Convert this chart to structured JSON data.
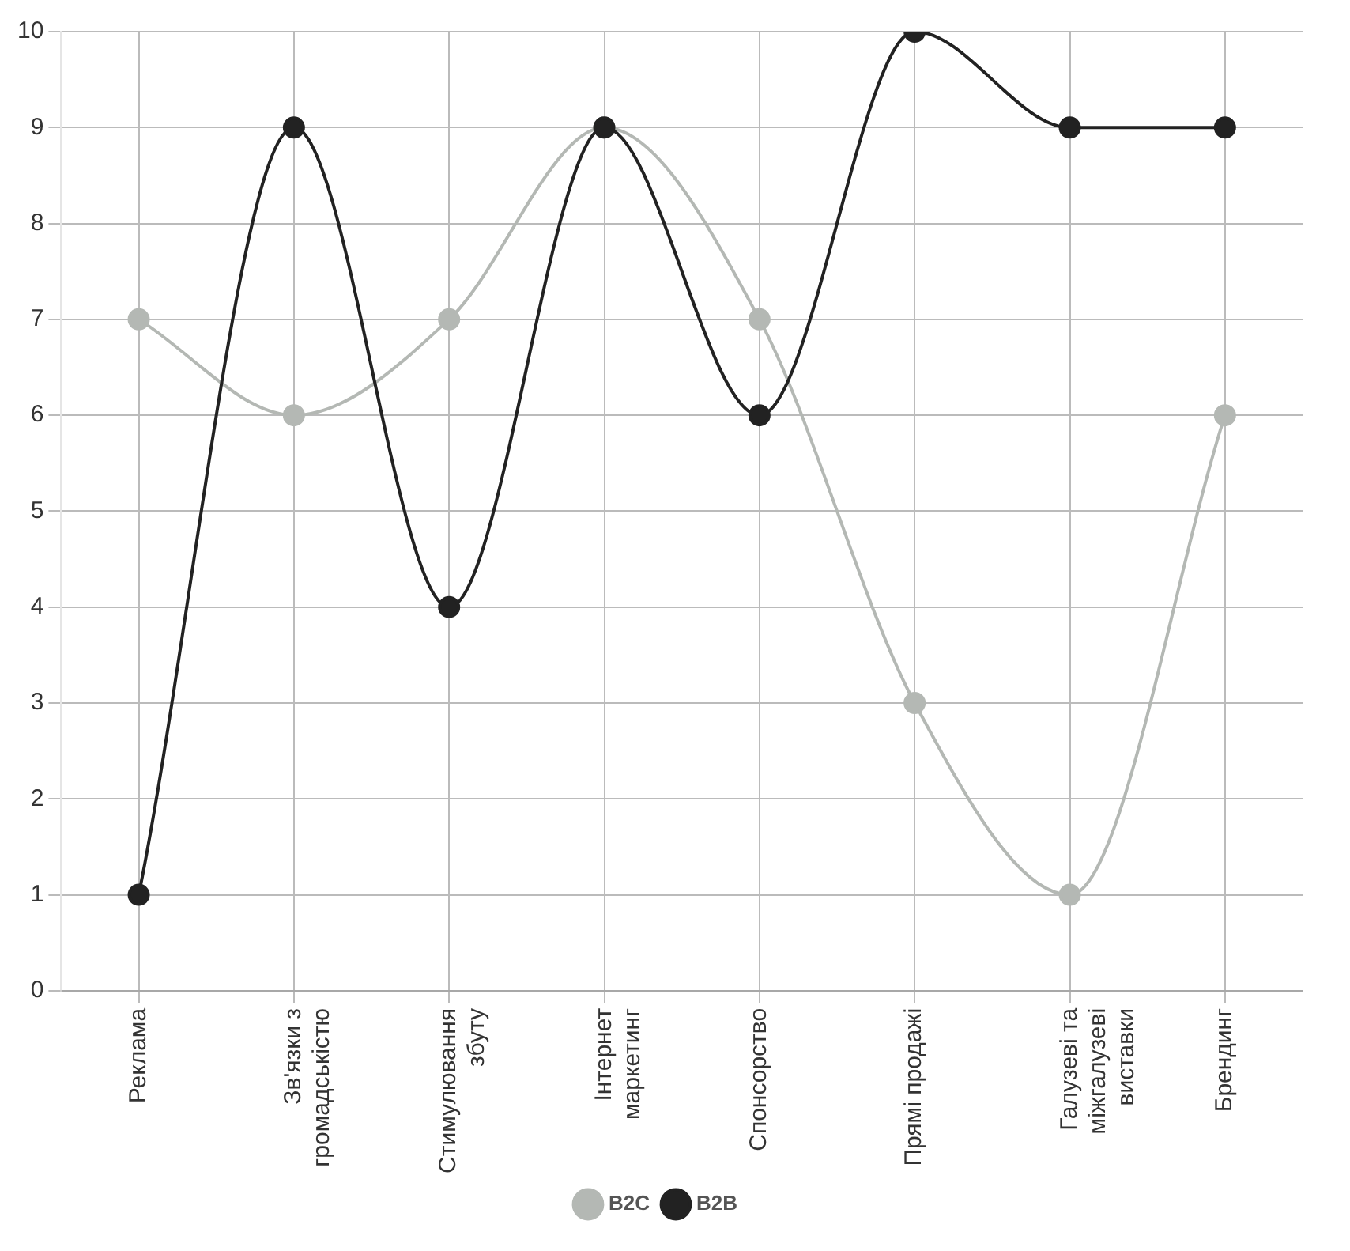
{
  "chart_data": {
    "type": "line",
    "categories": [
      "Реклама",
      "Зв'язки з громадськістю",
      "Стимулювання збуту",
      "Інтернет маркетинг",
      "Спонсорство",
      "Прямі продажі",
      "Галузеві та міжгалузеві виставки",
      "Брендинг"
    ],
    "series": [
      {
        "name": "B2C",
        "color": "#b4b8b4",
        "values": [
          7,
          6,
          7,
          9,
          7,
          3,
          1,
          6
        ]
      },
      {
        "name": "B2B",
        "color": "#222222",
        "values": [
          1,
          9,
          4,
          9,
          6,
          10,
          9,
          9
        ]
      }
    ],
    "ylim": [
      0,
      10
    ],
    "yticks": [
      0,
      1,
      2,
      3,
      4,
      5,
      6,
      7,
      8,
      9,
      10
    ],
    "grid": true,
    "legend": "bottom",
    "marker": "circle",
    "line_style": "solid"
  }
}
